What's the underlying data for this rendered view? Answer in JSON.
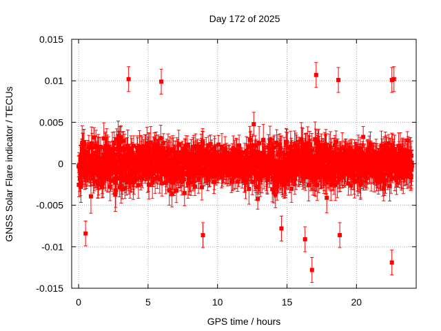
{
  "chart_data": {
    "type": "scatter",
    "title": "Day 172 of 2025",
    "xlabel": "GPS time / hours",
    "ylabel": "GNSS Solar Flare indicator / TECUs",
    "xlim": [
      -0.5,
      24.3
    ],
    "ylim": [
      -0.015,
      0.015
    ],
    "xticks": [
      0,
      5,
      10,
      15,
      20
    ],
    "yticks": [
      -0.015,
      -0.01,
      -0.005,
      0,
      0.005,
      0.01,
      0.015
    ],
    "xtick_labels": [
      "0",
      "5",
      "10",
      "15",
      "20"
    ],
    "ytick_labels": [
      "-0.015",
      "-0.01",
      "-0.005",
      "0",
      "0.005",
      "0.01",
      "0.015"
    ],
    "grid": true,
    "legend": "none",
    "error_bars": true,
    "series_color": "#ff0000",
    "notable_points": [
      {
        "x": 3.6,
        "y": 0.0102
      },
      {
        "x": 5.95,
        "y": 0.0099
      },
      {
        "x": 8.95,
        "y": -0.0086
      },
      {
        "x": 16.8,
        "y": -0.0128
      },
      {
        "x": 17.1,
        "y": 0.0107
      },
      {
        "x": 18.7,
        "y": 0.0101
      },
      {
        "x": 22.55,
        "y": 0.0101
      },
      {
        "x": 22.7,
        "y": 0.0102
      },
      {
        "x": 22.55,
        "y": -0.0119
      },
      {
        "x": 0.5,
        "y": -0.0084
      },
      {
        "x": 16.3,
        "y": -0.0091
      },
      {
        "x": 14.6,
        "y": -0.0078
      },
      {
        "x": 18.8,
        "y": -0.0086
      }
    ],
    "noise_profile": [
      {
        "x_range": [
          0,
          4
        ],
        "sigma": 0.0023,
        "errbar": 0.0016
      },
      {
        "x_range": [
          4,
          9
        ],
        "sigma": 0.002,
        "errbar": 0.0015
      },
      {
        "x_range": [
          9,
          12
        ],
        "sigma": 0.0016,
        "errbar": 0.0013
      },
      {
        "x_range": [
          12,
          18
        ],
        "sigma": 0.0023,
        "errbar": 0.0016
      },
      {
        "x_range": [
          18,
          24
        ],
        "sigma": 0.0019,
        "errbar": 0.0015
      }
    ]
  }
}
